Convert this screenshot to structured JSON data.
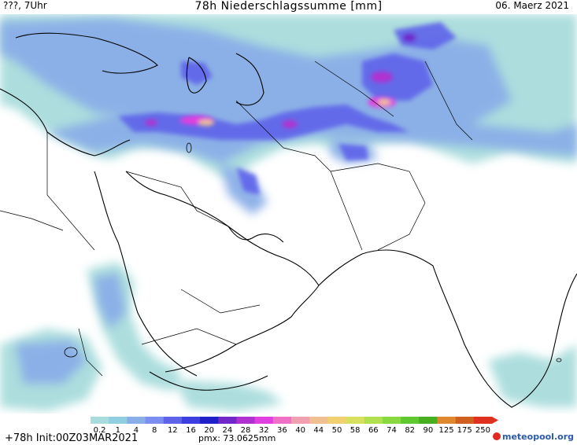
{
  "header": {
    "left": "???, 7Uhr",
    "center": "78h Niederschlagssumme [mm]",
    "right": "06. Maerz 2021"
  },
  "legend": {
    "labels": [
      "0.2",
      "1",
      "4",
      "8",
      "12",
      "16",
      "20",
      "24",
      "28",
      "32",
      "36",
      "40",
      "44",
      "50",
      "58",
      "66",
      "74",
      "82",
      "90",
      "125",
      "175",
      "250"
    ],
    "colors": [
      "#a9dcdc",
      "#90cfe0",
      "#8aaee8",
      "#7c8ef0",
      "#5f63ea",
      "#3d3ee0",
      "#2020c8",
      "#7028c8",
      "#b030d0",
      "#e040e0",
      "#f070c8",
      "#f0a0b0",
      "#f0c090",
      "#f0d070",
      "#d8e060",
      "#b0e050",
      "#88d840",
      "#60c830",
      "#48b020",
      "#e08830",
      "#d06020",
      "#e03020"
    ]
  },
  "footer": {
    "run": "+78h Init:00Z03MAR2021",
    "pmx": "pmx: 73.0625mm",
    "logo": "meteopool.org"
  }
}
